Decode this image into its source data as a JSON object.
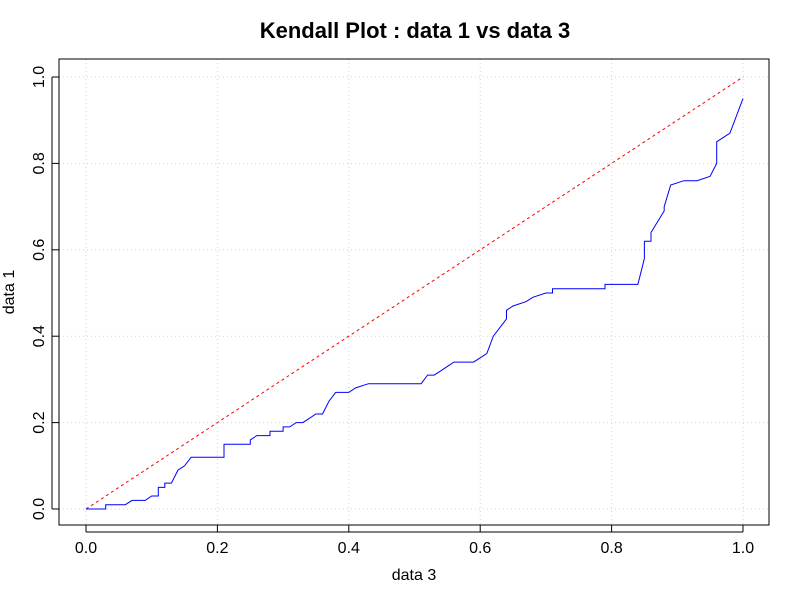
{
  "chart_data": {
    "type": "line",
    "title": "Kendall Plot : data 1 vs data 3",
    "xlabel": "data 3",
    "ylabel": "data 1",
    "xlim": [
      0,
      1
    ],
    "ylim": [
      0,
      1
    ],
    "x_ticks": [
      "0.0",
      "0.2",
      "0.4",
      "0.6",
      "0.8",
      "1.0"
    ],
    "y_ticks": [
      "0.0",
      "0.2",
      "0.4",
      "0.6",
      "0.8",
      "1.0"
    ],
    "grid": true,
    "colors": {
      "series": "#0000ff",
      "reference": "#ff0000",
      "grid": "#d3d3d3",
      "frame": "#000000"
    },
    "reference_line": {
      "x": [
        0,
        1
      ],
      "y": [
        0,
        1
      ],
      "style": "dashed"
    },
    "series": [
      {
        "x": [
          0.0,
          0.03,
          0.03,
          0.06,
          0.07,
          0.09,
          0.1,
          0.11,
          0.11,
          0.12,
          0.12,
          0.13,
          0.14,
          0.15,
          0.16,
          0.17,
          0.21,
          0.21,
          0.25,
          0.25,
          0.26,
          0.28,
          0.28,
          0.3,
          0.3,
          0.31,
          0.32,
          0.33,
          0.34,
          0.35,
          0.36,
          0.37,
          0.38,
          0.38,
          0.4,
          0.41,
          0.43,
          0.45,
          0.47,
          0.49,
          0.51,
          0.52,
          0.53,
          0.54,
          0.55,
          0.56,
          0.58,
          0.59,
          0.6,
          0.61,
          0.62,
          0.62,
          0.63,
          0.64,
          0.64,
          0.65,
          0.67,
          0.68,
          0.7,
          0.71,
          0.71,
          0.79,
          0.79,
          0.84,
          0.85,
          0.85,
          0.86,
          0.86,
          0.88,
          0.88,
          0.89,
          0.91,
          0.93,
          0.95,
          0.96,
          0.96,
          0.98,
          1.0
        ],
        "y": [
          0.0,
          0.0,
          0.01,
          0.01,
          0.02,
          0.02,
          0.03,
          0.03,
          0.05,
          0.05,
          0.06,
          0.06,
          0.09,
          0.1,
          0.12,
          0.12,
          0.12,
          0.15,
          0.15,
          0.16,
          0.17,
          0.17,
          0.18,
          0.18,
          0.19,
          0.19,
          0.2,
          0.2,
          0.21,
          0.22,
          0.22,
          0.25,
          0.27,
          0.27,
          0.27,
          0.28,
          0.29,
          0.29,
          0.29,
          0.29,
          0.29,
          0.31,
          0.31,
          0.32,
          0.33,
          0.34,
          0.34,
          0.34,
          0.35,
          0.36,
          0.4,
          0.4,
          0.42,
          0.44,
          0.46,
          0.47,
          0.48,
          0.49,
          0.5,
          0.5,
          0.51,
          0.51,
          0.52,
          0.52,
          0.58,
          0.62,
          0.62,
          0.64,
          0.69,
          0.7,
          0.75,
          0.76,
          0.76,
          0.77,
          0.8,
          0.85,
          0.87,
          0.95
        ]
      }
    ]
  }
}
